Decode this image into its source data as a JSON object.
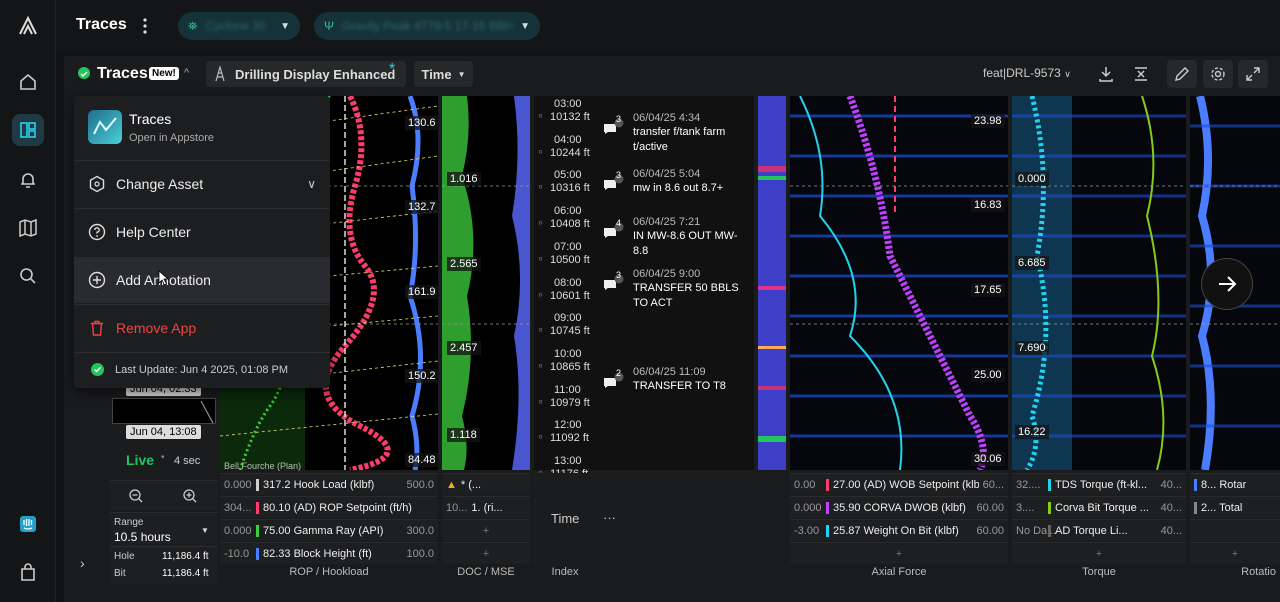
{
  "app": {
    "title": "Traces"
  },
  "topbar": {
    "pill1_label": "Cyclone 30",
    "pill2_label": "Gravity Peak 4778-5 17-16 BBH"
  },
  "panel": {
    "title": "Traces",
    "new_badge": "New!",
    "display_name": "Drilling Display Enhanced",
    "display_star": "*",
    "time_dropdown": "Time",
    "user": "feat|DRL-9573"
  },
  "menu": {
    "app_name": "Traces",
    "app_sub": "Open in Appstore",
    "items": [
      "Change Asset",
      "Help Center",
      "Add Annotation",
      "Remove App"
    ],
    "last_update": "Last Update: Jun 4 2025, 01:08 PM"
  },
  "left_panel": {
    "time_top": "Jun 04, 02:33",
    "time_bottom": "Jun 04, 13:08",
    "live": "Live",
    "live_interval": "4 sec",
    "range_label": "Range",
    "range_value": "10.5 hours",
    "hole_label": "Hole",
    "hole_value": "11,186.4 ft",
    "bit_label": "Bit",
    "bit_value": "11,186.4 ft"
  },
  "rop_track": {
    "values": [
      "130.6",
      "132.7",
      "161.9",
      "150.2",
      "84.48"
    ],
    "bottom_label": "Bell Fourche (Plan)",
    "rows": [
      {
        "min": "0.000",
        "value": "317.2 Hook Load (klbf)",
        "max": "500.0",
        "color": "#cfcfcf"
      },
      {
        "min": "304...",
        "value": "80.10 (AD) ROP Setpoint (ft/h)",
        "max": "",
        "color": "#ff3b6b"
      },
      {
        "min": "0.000",
        "value": "75.00 Gamma Ray (API)",
        "max": "300.0",
        "color": "#3ad23a"
      },
      {
        "min": "-10.0",
        "value": "82.33 Block Height (ft)",
        "max": "100.0",
        "color": "#4a7dff"
      }
    ],
    "label": "ROP / Hookload"
  },
  "doc_track": {
    "values": [
      "1.016",
      "2.565",
      "2.457",
      "1.118"
    ],
    "row1": "* (...",
    "row2_min": "10...",
    "row2": "1. (ri...",
    "label": "DOC / MSE"
  },
  "index_track": {
    "entries": [
      {
        "time": "03:00",
        "depth": "10132 ft"
      },
      {
        "time": "04:00",
        "depth": "10244 ft"
      },
      {
        "time": "05:00",
        "depth": "10316 ft"
      },
      {
        "time": "06:00",
        "depth": "10408 ft"
      },
      {
        "time": "07:00",
        "depth": "10500 ft"
      },
      {
        "time": "08:00",
        "depth": "10601 ft"
      },
      {
        "time": "09:00",
        "depth": "10745 ft"
      },
      {
        "time": "10:00",
        "depth": "10865 ft"
      },
      {
        "time": "11:00",
        "depth": "10979 ft"
      },
      {
        "time": "12:00",
        "depth": "11092 ft"
      },
      {
        "time": "13:00",
        "depth": "11176 ft"
      }
    ],
    "time_label": "Time",
    "more": "···",
    "label": "Index"
  },
  "annotations": [
    {
      "count": "3",
      "date": "06/04/25 4:34",
      "text": "transfer f/tank farm t/active"
    },
    {
      "count": "3",
      "date": "06/04/25 5:04",
      "text": "mw in 8.6 out 8.7+"
    },
    {
      "count": "4",
      "date": "06/04/25 7:21",
      "text": "IN MW-8.6 OUT MW-8.8"
    },
    {
      "count": "3",
      "date": "06/04/25 9:00",
      "text": "TRANSFER 50 BBLS TO ACT"
    },
    {
      "count": "2",
      "date": "06/04/25 11:09",
      "text": "TRANSFER TO T8"
    }
  ],
  "axial_track": {
    "values": [
      "23.98",
      "16.83",
      "17.65",
      "25.00",
      "30.06"
    ],
    "rows": [
      {
        "min": "0.00",
        "value": "27.00 (AD) WOB Setpoint (klbf)",
        "max": "60...",
        "color": "#ff3b6b"
      },
      {
        "min": "0.000",
        "value": "35.90 CORVA DWOB (klbf)",
        "max": "60.00",
        "color": "#c040ff"
      },
      {
        "min": "-3.00",
        "value": "25.87 Weight On Bit (klbf)",
        "max": "60.00",
        "color": "#22d3ee"
      }
    ],
    "label": "Axial Force"
  },
  "torque_track": {
    "values": [
      "0.000",
      "6.685",
      "7.690",
      "16.22"
    ],
    "rows": [
      {
        "min": "32....",
        "value": "TDS Torque (ft-kl...",
        "max": "40...",
        "color": "#22d3ee"
      },
      {
        "min": "3....",
        "value": "Corva Bit Torque ...",
        "max": "40...",
        "color": "#84cc16"
      },
      {
        "min": "No Da...",
        "value": "AD Torque Li...",
        "max": "40...",
        "color": "#666"
      }
    ],
    "label": "Torque"
  },
  "rot_track": {
    "rows": [
      "8... Rotar",
      "2... Total"
    ],
    "label": "Rotatio"
  },
  "colors": {
    "accent": "#22d3ee",
    "live": "#22c55e",
    "danger": "#ef4444"
  }
}
